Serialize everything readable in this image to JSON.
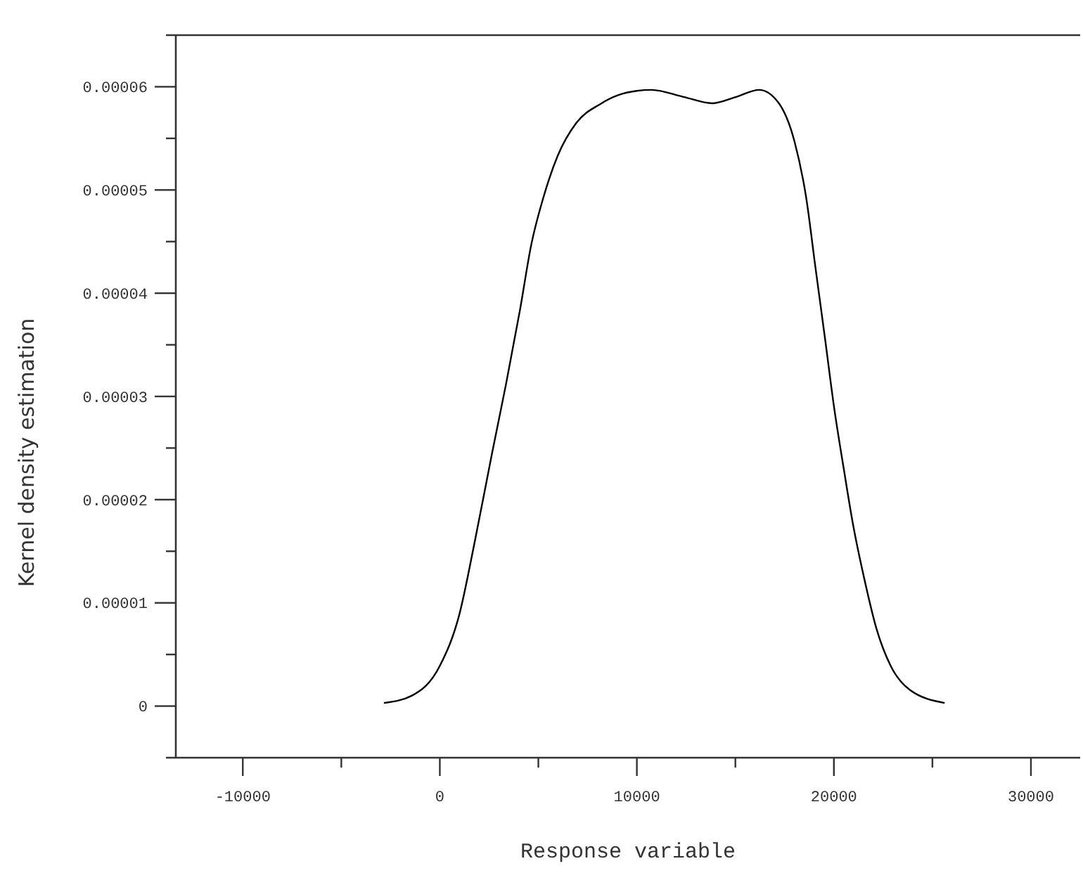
{
  "chart_data": {
    "type": "line",
    "xlabel": "Response variable",
    "ylabel": "Kernel density estimation",
    "xlim": [
      -13400,
      32500
    ],
    "ylim": [
      -5e-06,
      6.5e-05
    ],
    "xticks": [
      -10000,
      {
        "value": -5000,
        "label": null
      },
      0,
      {
        "value": 5000,
        "label": null
      },
      10000,
      {
        "value": 15000,
        "label": null
      },
      20000,
      {
        "value": 25000,
        "label": null
      },
      30000
    ],
    "yticks": [
      0,
      {
        "value": 5e-06,
        "label": null
      },
      {
        "value": 1e-05,
        "label": "0.00001"
      },
      {
        "value": 1.5e-05,
        "label": null
      },
      {
        "value": 2e-05,
        "label": "0.00002"
      },
      {
        "value": 2.5e-05,
        "label": null
      },
      {
        "value": 3e-05,
        "label": "0.00003"
      },
      {
        "value": 3.5e-05,
        "label": null
      },
      {
        "value": 4e-05,
        "label": "0.00004"
      },
      {
        "value": 4.5e-05,
        "label": null
      },
      {
        "value": 5e-05,
        "label": "0.00005"
      },
      {
        "value": 5.5e-05,
        "label": null
      },
      {
        "value": 6e-05,
        "label": "0.00006"
      }
    ],
    "grid": false,
    "marker": "none",
    "line_style": "solid",
    "series": [
      {
        "color": "#000000",
        "x": [
          -2840,
          -1430,
          0,
          980,
          1800,
          2640,
          3360,
          4070,
          4640,
          5260,
          5980,
          6930,
          8120,
          9070,
          10000,
          10740,
          12400,
          13830,
          15020,
          16210,
          17170,
          18000,
          18590,
          19070,
          19550,
          20020,
          20500,
          20980,
          21570,
          22160,
          22880,
          23830,
          25620
        ],
        "values": [
          3e-07,
          1e-06,
          3.9e-06,
          8.8e-06,
          1.62e-05,
          2.44e-05,
          3.12e-05,
          3.84e-05,
          4.47e-05,
          4.93e-05,
          5.33e-05,
          5.65e-05,
          5.83e-05,
          5.92e-05,
          5.96e-05,
          5.97e-05,
          5.9e-05,
          5.84e-05,
          5.9e-05,
          5.97e-05,
          5.85e-05,
          5.47e-05,
          4.93e-05,
          4.24e-05,
          3.56e-05,
          2.88e-05,
          2.3e-05,
          1.75e-05,
          1.21e-05,
          7.5e-06,
          3.9e-06,
          1.6e-06,
          3e-07
        ]
      }
    ]
  }
}
